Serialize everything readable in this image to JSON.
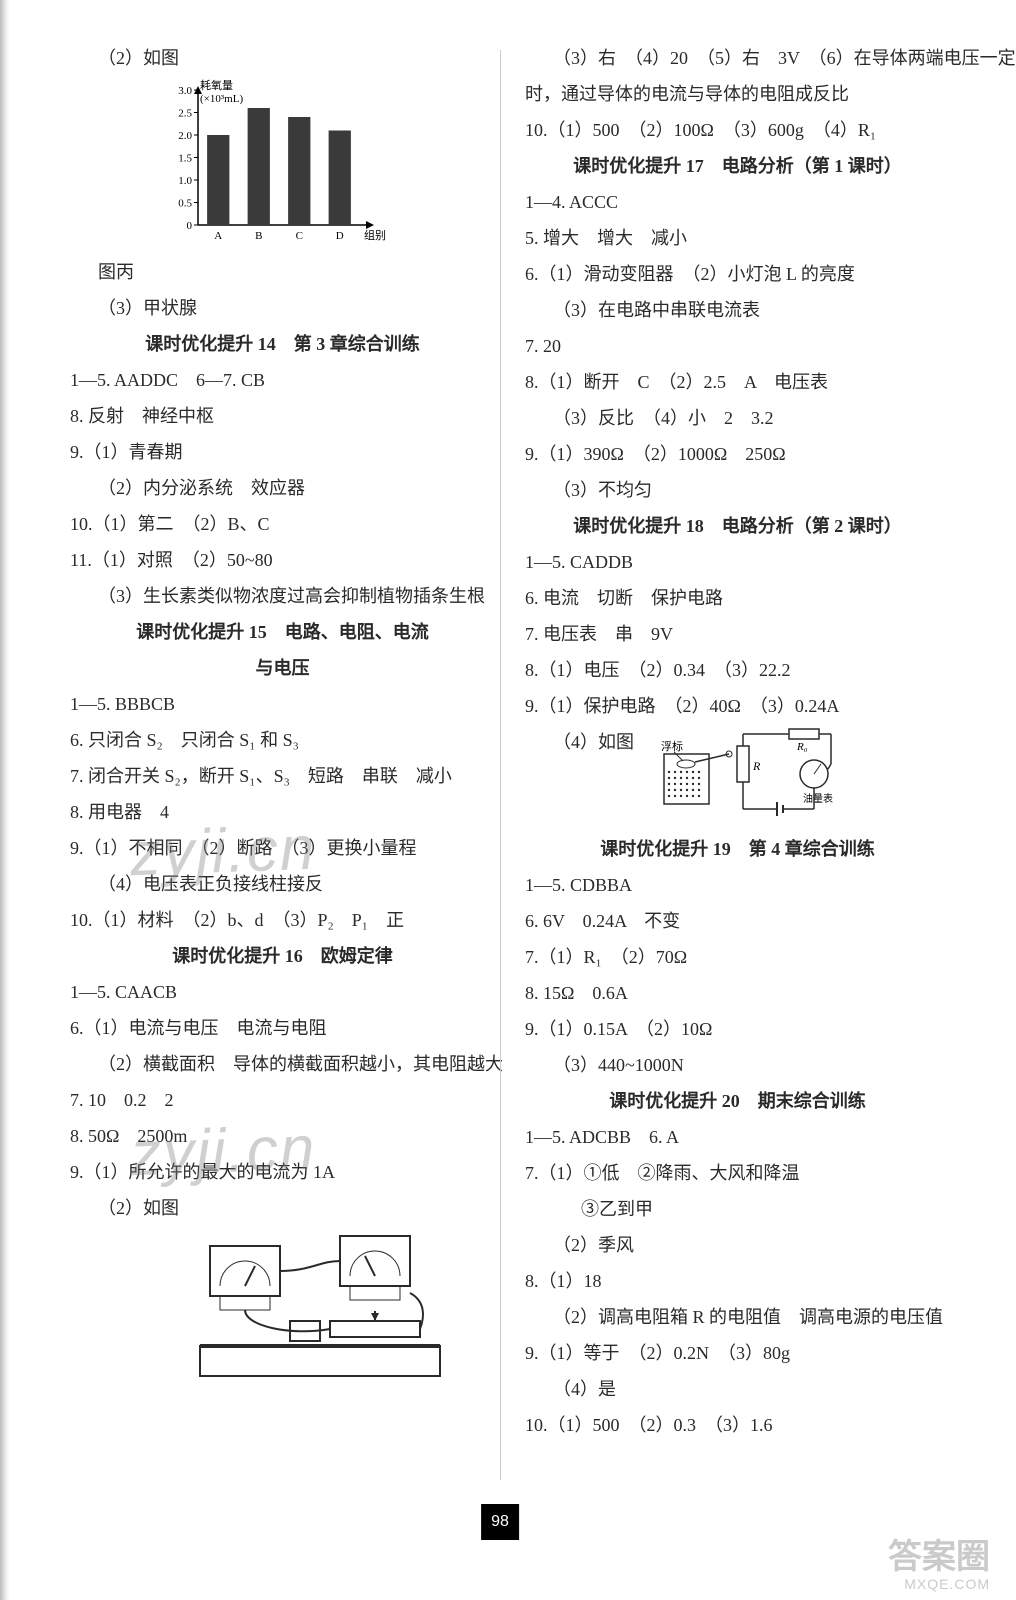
{
  "page_number": "98",
  "left": {
    "l1": "（2）如图",
    "chart": {
      "type": "bar",
      "ylabel": "耗氧量\n(×10³mL)",
      "xlabel": "组别",
      "categories": [
        "A",
        "B",
        "C",
        "D"
      ],
      "values": [
        2.0,
        2.6,
        2.4,
        2.1
      ],
      "ylim": [
        0,
        3.0
      ],
      "ytick_step": 0.5,
      "yticks": [
        "0",
        "0.5",
        "1.0",
        "1.5",
        "2.0",
        "2.5",
        "3.0"
      ],
      "bar_color": "#3a3a3a",
      "axis_color": "#000000",
      "bar_width": 0.55,
      "label_fontsize": 11
    },
    "l2": "图丙",
    "l3": "（3）甲状腺",
    "h14": "课时优化提升 14　第 3 章综合训练",
    "l4": "1—5. AADDC　6—7. CB",
    "l5": "8. 反射　神经中枢",
    "l6": "9.（1）青春期",
    "l7": "（2）内分泌系统　效应器",
    "l8": "10.（1）第二　（2）B、C",
    "l9": "11.（1）对照　（2）50~80",
    "l10": "（3）生长素类似物浓度过高会抑制植物插条生根",
    "h15a": "课时优化提升 15　电路、电阻、电流",
    "h15b": "与电压",
    "l11": "1—5. BBBCB",
    "l12": "6. 只闭合 S₂　只闭合 S₁ 和 S₃",
    "l13": "7. 闭合开关 S₂，断开 S₁、S₃　短路　串联　减小",
    "l14": "8. 用电器　4",
    "l15": "9.（1）不相同　（2）断路　（3）更换小量程",
    "l16": "（4）电压表正负接线柱接反",
    "l17": "10.（1）材料　（2）b、d　（3）P₂　P₁　正",
    "h16": "课时优化提升 16　欧姆定律",
    "l18": "1—5. CAACB",
    "l19": "6.（1）电流与电压　电流与电阻",
    "l20": "（2）横截面积　导体的横截面积越小，其电阻越大",
    "l21": "7. 10　0.2　2",
    "l22": "8. 50Ω　2500m",
    "l23": "9.（1）所允许的最大的电流为 1A",
    "l24": "（2）如图",
    "circuit_big": {
      "type": "diagram",
      "description": "circuit with ammeter, voltmeter, rheostat, battery",
      "stroke": "#2a2a2a"
    }
  },
  "right": {
    "r1": "（3）右　（4）20　（5）右　3V　（6）在导体两端电压一定",
    "r2": "时，通过导体的电流与导体的电阻成反比",
    "r3": "10.（1）500　（2）100Ω　（3）600g　（4）R₁",
    "h17": "课时优化提升 17　电路分析（第 1 课时）",
    "r4": "1—4. ACCC",
    "r5": "5. 增大　增大　减小",
    "r6": "6.（1）滑动变阻器　（2）小灯泡 L 的亮度",
    "r7": "（3）在电路中串联电流表",
    "r8": "7. 20",
    "r9": "8.（1）断开　C　（2）2.5　A　电压表",
    "r10": "（3）反比　（4）小　2　3.2",
    "r11": "9.（1）390Ω　（2）1000Ω　250Ω",
    "r12": "（3）不均匀",
    "h18": "课时优化提升 18　电路分析（第 2 课时）",
    "r13": "1—5. CADDB",
    "r14": "6. 电流　切断　保护电路",
    "r15": "7. 电压表　串　9V",
    "r16": "8.（1）电压　（2）0.34　（3）22.2",
    "r17": "9.（1）保护电路　（2）40Ω　（3）0.24A",
    "r18": "（4）如图",
    "circuit_small": {
      "type": "diagram",
      "labels": {
        "float": "浮标",
        "r0": "R₀",
        "meter": "油量表",
        "r": "R"
      },
      "stroke": "#2a2a2a"
    },
    "h19": "课时优化提升 19　第 4 章综合训练",
    "r19": "1—5. CDBBA",
    "r20": "6. 6V　0.24A　不变",
    "r21": "7.（1）R₁　（2）70Ω",
    "r22": "8. 15Ω　0.6A",
    "r23": "9.（1）0.15A　（2）10Ω",
    "r24": "（3）440~1000N",
    "h20": "课时优化提升 20　期末综合训练",
    "r25": "1—5. ADCBB　6. A",
    "r26": "7.（1）①低　②降雨、大风和降温",
    "r27": "③乙到甲",
    "r28": "（2）季风",
    "r29": "8.（1）18",
    "r30": "（2）调高电阻箱 R 的电阻值　调高电源的电压值",
    "r31": "9.（1）等于　（2）0.2N　（3）80g",
    "r32": "（4）是",
    "r33": "10.（1）500　（2）0.3　（3）1.6"
  },
  "watermark": "zyji.cn",
  "corner": {
    "big": "答案圈",
    "small": "MXQE.COM"
  }
}
